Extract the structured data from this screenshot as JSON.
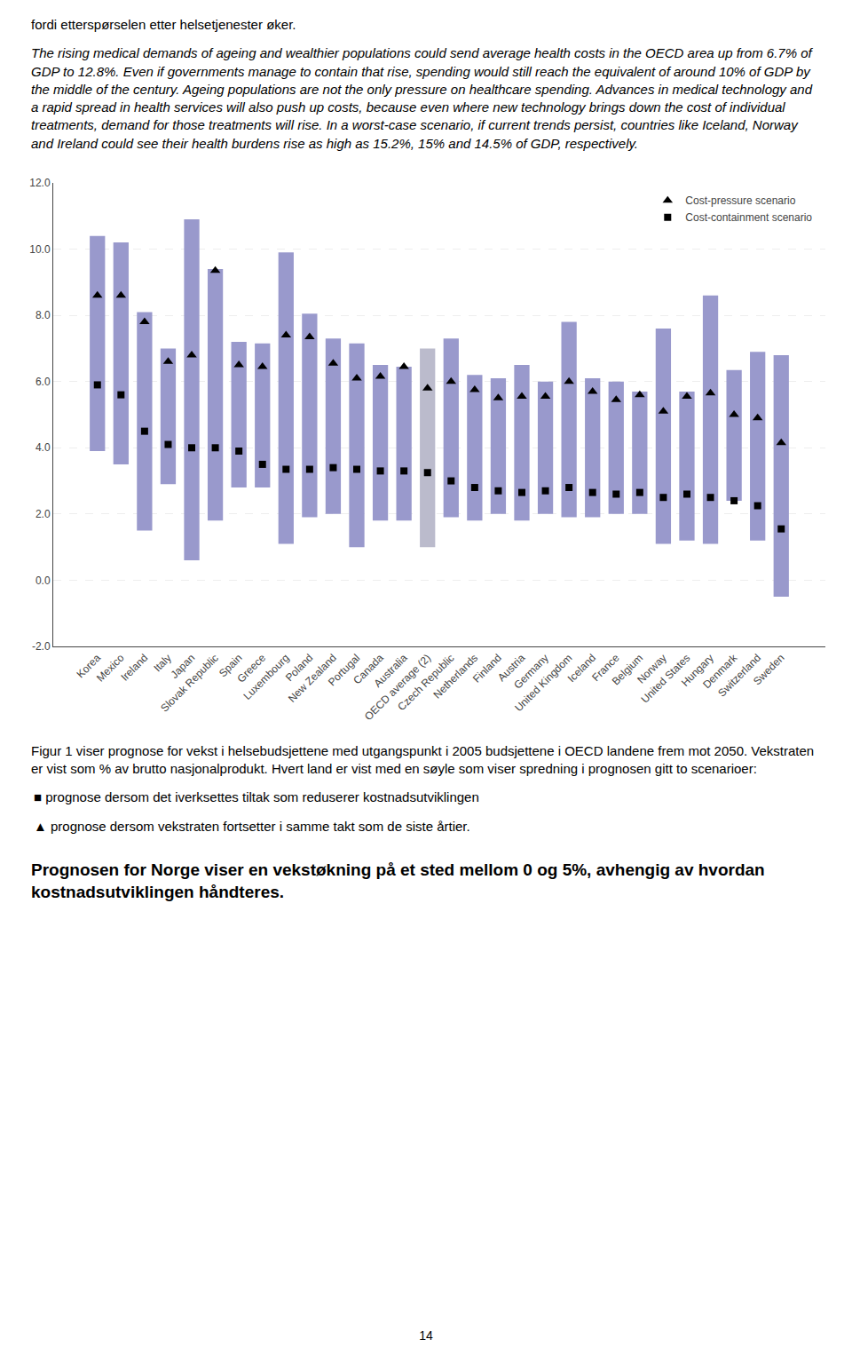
{
  "chart_data": {
    "type": "bar",
    "categories": [
      "Korea",
      "Mexico",
      "Ireland",
      "Italy",
      "Japan",
      "Slovak Republic",
      "Spain",
      "Greece",
      "Luxembourg",
      "Poland",
      "New Zealand",
      "Portugal",
      "Canada",
      "Australia",
      "OECD average (2)",
      "Czech Republic",
      "Netherlands",
      "Finland",
      "Austria",
      "Germany",
      "United Kingdom",
      "Iceland",
      "France",
      "Belgium",
      "Norway",
      "United States",
      "Hungary",
      "Denmark",
      "Switzerland",
      "Sweden"
    ],
    "series": [
      {
        "type": "bar",
        "low": [
          3.9,
          3.5,
          1.5,
          2.9,
          0.6,
          1.8,
          2.8,
          2.8,
          1.1,
          1.9,
          2.0,
          1.0,
          1.8,
          1.8,
          1.0,
          1.9,
          1.8,
          2.0,
          1.8,
          2.0,
          1.9,
          1.9,
          2.0,
          2.0,
          1.1,
          1.2,
          1.1,
          2.4,
          1.2,
          -0.5
        ],
        "high": [
          10.4,
          10.2,
          8.1,
          7.0,
          10.9,
          9.4,
          7.2,
          7.15,
          9.9,
          8.05,
          7.3,
          7.15,
          6.5,
          6.45,
          7.0,
          7.3,
          6.2,
          6.1,
          6.5,
          6.0,
          7.8,
          6.1,
          6.0,
          5.7,
          7.6,
          5.7,
          8.6,
          6.35,
          6.9,
          6.8
        ],
        "colors": [
          "#9999cc",
          "#9999cc",
          "#9999cc",
          "#9999cc",
          "#9999cc",
          "#9999cc",
          "#9999cc",
          "#9999cc",
          "#9999cc",
          "#9999cc",
          "#9999cc",
          "#9999cc",
          "#9999cc",
          "#9999cc",
          "#bbbbcc",
          "#9999cc",
          "#9999cc",
          "#9999cc",
          "#9999cc",
          "#9999cc",
          "#9999cc",
          "#9999cc",
          "#9999cc",
          "#9999cc",
          "#9999cc",
          "#9999cc",
          "#9999cc",
          "#9999cc",
          "#9999cc",
          "#9999cc"
        ]
      },
      {
        "type": "scatter",
        "name": "Cost-pressure scenario",
        "marker": "triangle-up",
        "color": "#000000",
        "values": [
          8.6,
          8.6,
          7.8,
          6.6,
          6.8,
          9.35,
          6.5,
          6.45,
          7.4,
          7.35,
          6.55,
          6.1,
          6.15,
          6.45,
          5.8,
          6.0,
          5.75,
          5.5,
          5.55,
          5.55,
          6.0,
          5.7,
          5.45,
          5.6,
          5.1,
          5.55,
          5.65,
          5.0,
          4.9,
          4.15
        ]
      },
      {
        "type": "scatter",
        "name": "Cost-containment scenario",
        "marker": "square",
        "color": "#000000",
        "values": [
          5.9,
          5.6,
          4.5,
          4.1,
          4.0,
          4.0,
          3.9,
          3.5,
          3.35,
          3.35,
          3.4,
          3.35,
          3.3,
          3.3,
          3.25,
          3.0,
          2.8,
          2.7,
          2.65,
          2.7,
          2.8,
          2.65,
          2.6,
          2.65,
          2.5,
          2.6,
          2.5,
          2.4,
          2.25,
          1.55
        ]
      }
    ],
    "ylim": [
      -2.0,
      12.0
    ],
    "yticks": [
      {
        "value": -2.0,
        "label": "-2.0"
      },
      {
        "value": 0.0,
        "label": "0.0"
      },
      {
        "value": 2.0,
        "label": "2.0"
      },
      {
        "value": 4.0,
        "label": "4.0"
      },
      {
        "value": 6.0,
        "label": "6.0"
      },
      {
        "value": 8.0,
        "label": "8.0"
      },
      {
        "value": 10.0,
        "label": "10.0"
      },
      {
        "value": 12.0,
        "label": "12.0"
      }
    ],
    "grid": true,
    "legend": "upper right",
    "annotations": [
      "fordi etterspørselen etter helsetjenester øker.",
      "The rising medical demands of ageing and wealthier populations could send average health costs in the OECD area up from 6.7% of GDP to 12.8%. Even if governments manage to contain that rise, spending would still reach the equivalent of around 10% of GDP by the middle of the century. Ageing populations are not the only pressure on healthcare spending. Advances in medical technology and a rapid spread in health services will also push up costs, because even where new technology brings down the cost of individual treatments, demand for those treatments will rise. In a worst-case scenario, if current trends persist, countries like Iceland, Norway and Ireland could see their health burdens rise as high as 15.2%, 15% and 14.5% of GDP, respectively.",
      "Figur 1 viser prognose for vekst i helsebudsjettene med utgangspunkt i 2005 budsjettene i OECD landene frem mot 2050.  Vekstraten er vist som % av brutto nasjonalprodukt. Hvert land er vist med en søyle som viser spredning i prognosen gitt to scenarioer:",
      "■ prognose dersom det iverksettes tiltak som reduserer kostnadsutviklingen",
      "▲ prognose dersom vekstraten fortsetter i samme takt som de siste årtier.",
      "Prognosen for Norge viser en vekstøkning på et sted mellom 0 og 5%, avhengig av hvordan kostnadsutviklingen håndteres.",
      "14"
    ]
  }
}
